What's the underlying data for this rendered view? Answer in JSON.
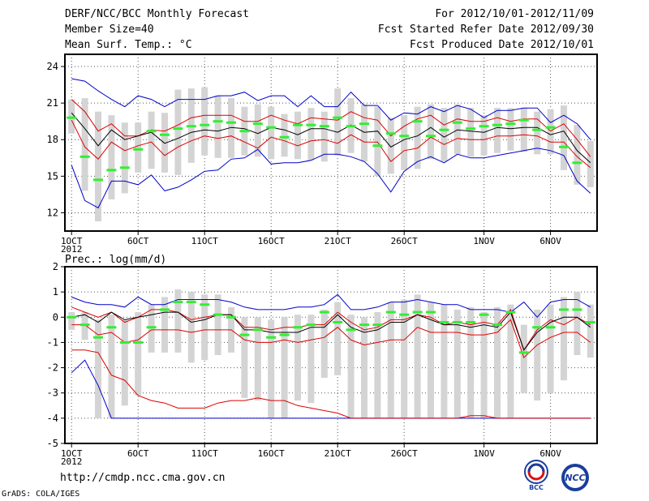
{
  "header": {
    "title": "DERF/NCC/BCC Monthly Forecast",
    "member_size": "Member Size=40",
    "variable": "Mean Surf. Temp.: °C",
    "period": "For 2012/10/01-2012/11/09",
    "fcst_started": "Fcst Started Refer Date 2012/09/30",
    "fcst_produced": "Fcst Produced Date 2012/10/01"
  },
  "footer": {
    "url": "http://cmdp.ncc.cma.gov.cn",
    "grads": "GrADS: COLA/IGES",
    "logo_left_text": "BCC",
    "logo_right_text": "NCC"
  },
  "colors": {
    "member_box": "#d4d4d4",
    "observed": "#33ee33",
    "ensemble_mean": "#000000",
    "spread": "#dd0000",
    "extremes": "#0000cc",
    "grid": "#555555"
  },
  "chart_data": [
    {
      "type": "line",
      "title": "Mean Surf. Temp.: °C",
      "x_ticks": [
        {
          "day": 1,
          "label": "1OCT"
        },
        {
          "day": 6,
          "label": "6OCT"
        },
        {
          "day": 11,
          "label": "11OCT"
        },
        {
          "day": 16,
          "label": "16OCT"
        },
        {
          "day": 21,
          "label": "21OCT"
        },
        {
          "day": 26,
          "label": "26OCT"
        },
        {
          "day": 32,
          "label": "1NOV"
        },
        {
          "day": 37,
          "label": "6NOV"
        }
      ],
      "year_label": "2012",
      "y_ticks": [
        12,
        15,
        18,
        21,
        24
      ],
      "ylim": [
        10.5,
        25
      ],
      "xlim": [
        0.5,
        40.5
      ],
      "days": [
        1,
        2,
        3,
        4,
        5,
        6,
        7,
        8,
        9,
        10,
        11,
        12,
        13,
        14,
        15,
        16,
        17,
        18,
        19,
        20,
        21,
        22,
        23,
        24,
        25,
        26,
        27,
        28,
        29,
        30,
        31,
        32,
        33,
        34,
        35,
        36,
        37,
        38,
        39,
        40
      ],
      "series": [
        {
          "name": "max",
          "values": [
            23,
            22.8,
            22,
            21.3,
            20.7,
            21.6,
            21.3,
            20.7,
            21.3,
            21.3,
            21.3,
            21.6,
            21.6,
            21.9,
            21.2,
            21.6,
            21.6,
            20.7,
            21.6,
            20.7,
            20.7,
            21.9,
            20.8,
            20.8,
            19.6,
            20.2,
            20.1,
            20.7,
            20.3,
            20.8,
            20.5,
            19.8,
            20.4,
            20.4,
            20.6,
            20.6,
            19.4,
            20,
            19.3,
            18
          ]
        },
        {
          "name": "p75",
          "values": [
            21.3,
            20.3,
            18.7,
            19.3,
            18.3,
            18.3,
            18.8,
            18.7,
            19.2,
            19.8,
            20,
            20,
            20,
            19.5,
            19.5,
            20,
            19.6,
            19.3,
            19.8,
            19.7,
            19.6,
            20.3,
            19.8,
            19.6,
            18.3,
            19.1,
            19.7,
            20,
            19.2,
            19.7,
            19.5,
            19.5,
            19.8,
            19.5,
            19.7,
            19.7,
            18.7,
            19.3,
            18,
            16.6
          ]
        },
        {
          "name": "mean",
          "values": [
            20.2,
            18.9,
            17.5,
            18.8,
            18,
            18.3,
            18.6,
            17.7,
            18.1,
            18.6,
            18.8,
            18.7,
            19,
            18.9,
            18.5,
            19,
            18.8,
            18.4,
            18.9,
            18.9,
            18.6,
            19.2,
            18.6,
            18.7,
            17.4,
            18,
            18.3,
            19,
            18.2,
            18.8,
            18.7,
            18.6,
            19,
            18.9,
            19,
            19,
            18.4,
            18.7,
            17.1,
            16.1
          ]
        },
        {
          "name": "p25",
          "values": [
            19.6,
            17.4,
            16.4,
            17.8,
            17.1,
            17.5,
            17.8,
            16.7,
            17.4,
            17.9,
            18.3,
            18.1,
            18.3,
            17.8,
            17.3,
            18.2,
            17.9,
            17.5,
            17.9,
            18,
            17.7,
            18.4,
            17.8,
            17.8,
            16.2,
            17.1,
            17.3,
            18.2,
            17.6,
            18.1,
            18,
            18,
            18.3,
            18.3,
            18.4,
            18.3,
            17.8,
            17.8,
            16.6,
            15.7
          ]
        },
        {
          "name": "min",
          "values": [
            15.9,
            13,
            12.4,
            14.6,
            14.6,
            14.3,
            15.1,
            13.8,
            14.1,
            14.7,
            15.4,
            15.5,
            16.4,
            16.5,
            17.2,
            16,
            16.1,
            16.1,
            16.3,
            16.8,
            16.8,
            16.6,
            16.2,
            15.2,
            13.7,
            15.4,
            16.2,
            16.6,
            16.1,
            16.8,
            16.5,
            16.5,
            16.7,
            16.9,
            17.1,
            17.3,
            17.1,
            16.7,
            14.6,
            13.6
          ]
        },
        {
          "name": "observed",
          "values": [
            19.8,
            16.6,
            14.7,
            15.5,
            15.7,
            17.2,
            18.7,
            18.4,
            18.9,
            19.1,
            19.2,
            19.5,
            19.4,
            18.7,
            19.3,
            19,
            18.2,
            19.2,
            19.2,
            19.1,
            19.8,
            19.1,
            19.3,
            17.5,
            18.5,
            18.3,
            19.5,
            18.3,
            18.8,
            19.4,
            18.9,
            19.1,
            19.2,
            19.3,
            19.6,
            18.8,
            19,
            17.4,
            16.1,
            null
          ]
        },
        {
          "name": "box_high",
          "values": [
            21.3,
            21.4,
            20.3,
            20,
            19.4,
            19.4,
            20.3,
            20.2,
            22.1,
            22.2,
            22.3,
            21.6,
            21.4,
            20.7,
            20.9,
            20.7,
            20.1,
            20.3,
            20.6,
            20.3,
            22.2,
            21.4,
            20.9,
            20.7,
            19.8,
            20,
            20.7,
            20.9,
            20.6,
            20.9,
            20.6,
            20,
            20.6,
            20.6,
            20.6,
            20.3,
            20.5,
            20.8,
            19.2,
            17.9
          ]
        },
        {
          "name": "box_low",
          "values": [
            18.5,
            13.8,
            11.3,
            13.1,
            13.6,
            15.3,
            15.6,
            15.3,
            15.1,
            16.1,
            16.7,
            16.5,
            16.5,
            16.7,
            16.6,
            16.4,
            16.6,
            16.4,
            16.3,
            16.2,
            16.7,
            16.9,
            16.2,
            15,
            15.2,
            15.5,
            15.6,
            16.4,
            16.2,
            16.8,
            16.6,
            16.7,
            16.9,
            17.1,
            17,
            16.8,
            16.8,
            15.5,
            14.3,
            14.1
          ]
        }
      ]
    },
    {
      "type": "line",
      "title": "Prec.: log(mm/d)",
      "x_ticks": [
        {
          "day": 1,
          "label": "1OCT"
        },
        {
          "day": 6,
          "label": "6OCT"
        },
        {
          "day": 11,
          "label": "11OCT"
        },
        {
          "day": 16,
          "label": "16OCT"
        },
        {
          "day": 21,
          "label": "21OCT"
        },
        {
          "day": 26,
          "label": "26OCT"
        },
        {
          "day": 32,
          "label": "1NOV"
        },
        {
          "day": 37,
          "label": "6NOV"
        }
      ],
      "year_label": "2012",
      "y_ticks": [
        -5,
        -4,
        -3,
        -2,
        -1,
        0,
        1,
        2
      ],
      "ylim": [
        -5,
        2
      ],
      "xlim": [
        0.5,
        40.5
      ],
      "days": [
        1,
        2,
        3,
        4,
        5,
        6,
        7,
        8,
        9,
        10,
        11,
        12,
        13,
        14,
        15,
        16,
        17,
        18,
        19,
        20,
        21,
        22,
        23,
        24,
        25,
        26,
        27,
        28,
        29,
        30,
        31,
        32,
        33,
        34,
        35,
        36,
        37,
        38,
        39,
        40
      ],
      "series": [
        {
          "name": "max",
          "values": [
            0.8,
            0.6,
            0.5,
            0.5,
            0.4,
            0.8,
            0.5,
            0.5,
            0.7,
            0.7,
            0.7,
            0.7,
            0.6,
            0.4,
            0.3,
            0.3,
            0.3,
            0.4,
            0.4,
            0.5,
            0.9,
            0.3,
            0.3,
            0.4,
            0.6,
            0.6,
            0.7,
            0.6,
            0.5,
            0.5,
            0.3,
            0.3,
            0.3,
            0.2,
            0.6,
            0,
            0.6,
            0.7,
            0.7,
            0.4
          ]
        },
        {
          "name": "p75",
          "values": [
            0.4,
            0.2,
            0,
            0.2,
            -0.2,
            0,
            0.3,
            0.3,
            0.2,
            -0.1,
            0,
            0.1,
            0.1,
            -0.4,
            -0.4,
            -0.5,
            -0.4,
            -0.4,
            -0.3,
            -0.3,
            0.2,
            -0.2,
            -0.5,
            -0.4,
            -0.1,
            -0.1,
            0.1,
            0,
            -0.3,
            -0.2,
            -0.3,
            -0.2,
            -0.3,
            0.3,
            -1.3,
            -0.5,
            -0.1,
            -0.3,
            0,
            -0.3
          ]
        },
        {
          "name": "mean",
          "values": [
            0,
            0.1,
            -0.2,
            0.2,
            -0.1,
            0,
            0.1,
            0.2,
            0.2,
            -0.2,
            -0.1,
            0.1,
            0.1,
            -0.5,
            -0.5,
            -0.6,
            -0.6,
            -0.6,
            -0.4,
            -0.4,
            0.1,
            -0.4,
            -0.6,
            -0.5,
            -0.2,
            -0.2,
            0.1,
            -0.1,
            -0.3,
            -0.3,
            -0.4,
            -0.3,
            -0.4,
            0.2,
            -1.3,
            -0.6,
            -0.2,
            0,
            0,
            -0.4
          ]
        },
        {
          "name": "p25",
          "values": [
            -0.3,
            -0.3,
            -0.7,
            -0.6,
            -1,
            -0.9,
            -0.5,
            -0.5,
            -0.5,
            -0.6,
            -0.5,
            -0.5,
            -0.5,
            -0.9,
            -1,
            -1,
            -0.9,
            -1,
            -0.9,
            -0.8,
            -0.4,
            -0.9,
            -1.1,
            -1,
            -0.9,
            -0.9,
            -0.4,
            -0.6,
            -0.6,
            -0.6,
            -0.7,
            -0.7,
            -0.6,
            -0.1,
            -1.6,
            -1.1,
            -0.8,
            -0.6,
            -0.6,
            -1
          ]
        },
        {
          "name": "min",
          "values": [
            -2.2,
            -1.7,
            -2.7,
            -4,
            -4,
            -4,
            -4,
            -4,
            -4,
            -4,
            -4,
            -4,
            -4,
            -4,
            -4,
            -4,
            -4,
            -4,
            -4,
            -4,
            -4,
            -4,
            -4,
            -4,
            -4,
            -4,
            -4,
            -4,
            -4,
            -4,
            -4,
            -4,
            -4,
            -4,
            -4,
            -4,
            -4,
            -4,
            -4,
            -4
          ]
        },
        {
          "name": "spread_low",
          "values": [
            -1.3,
            -1.3,
            -1.4,
            -2.3,
            -2.5,
            -3.1,
            -3.3,
            -3.4,
            -3.6,
            -3.6,
            -3.6,
            -3.4,
            -3.3,
            -3.3,
            -3.2,
            -3.3,
            -3.3,
            -3.5,
            -3.6,
            -3.7,
            -3.8,
            -4,
            -4,
            -4,
            -4,
            -4,
            -4,
            -4,
            -4,
            -4,
            -3.9,
            -3.9,
            -4,
            -4,
            -4,
            -4,
            -4,
            -4,
            -4,
            -4
          ]
        },
        {
          "name": "observed",
          "values": [
            0,
            -0.3,
            -0.8,
            -0.4,
            -1,
            -1,
            -0.4,
            0.3,
            0.6,
            0.6,
            0.5,
            0.1,
            0,
            -0.7,
            -0.5,
            -0.8,
            -0.7,
            -0.4,
            -0.3,
            0.2,
            -0.2,
            -0.5,
            -0.3,
            -0.3,
            0.2,
            0.1,
            0.2,
            0.2,
            -0.2,
            -0.2,
            -0.2,
            0.1,
            -0.3,
            0.2,
            -1.4,
            -0.4,
            -0.4,
            0.3,
            0.3,
            -0.2
          ]
        },
        {
          "name": "box_high",
          "values": [
            0.2,
            0.2,
            -0.1,
            0.1,
            -0.1,
            0.2,
            0.5,
            0.8,
            1.1,
            1,
            0.9,
            0.9,
            0.4,
            0,
            0,
            -0.1,
            0,
            0.1,
            0.1,
            0.3,
            0.6,
            0.1,
            0,
            0.2,
            0.6,
            0.7,
            0.9,
            0.6,
            0.5,
            0.3,
            0.4,
            0.2,
            0.4,
            0.5,
            -0.3,
            0.3,
            0.5,
            0.8,
            1,
            0.5
          ]
        },
        {
          "name": "box_low",
          "values": [
            -0.5,
            -0.9,
            -4,
            -4,
            -3.5,
            -3.1,
            -1.4,
            -1.4,
            -1.4,
            -1.8,
            -1.7,
            -1.5,
            -1.4,
            -3.2,
            -3.3,
            -4,
            -4,
            -3.3,
            -3.4,
            -2.4,
            -2.3,
            -4,
            -4,
            -4,
            -4,
            -4,
            -4,
            -4,
            -4,
            -4,
            -4,
            -4,
            -4,
            -4,
            -3,
            -3.3,
            -3,
            -2.5,
            -1.5,
            -1.6
          ]
        }
      ]
    }
  ]
}
